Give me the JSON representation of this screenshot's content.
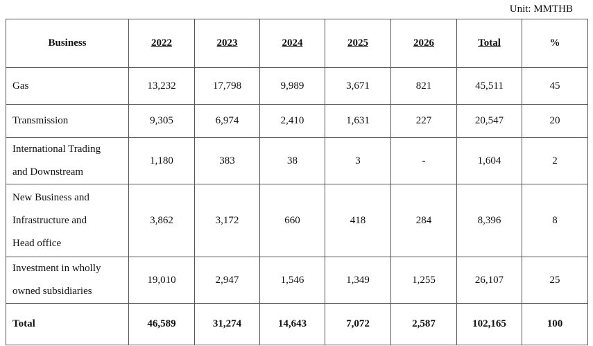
{
  "unit": "Unit: MMTHB",
  "table": {
    "header": [
      "Business",
      "2022",
      "2023",
      "2024",
      "2025",
      "2026",
      "Total",
      "%"
    ],
    "rows": [
      {
        "label": [
          "Gas"
        ],
        "values": [
          "13,232",
          "17,798",
          "9,989",
          "3,671",
          "821",
          "45,511",
          "45"
        ]
      },
      {
        "label": [
          "Transmission"
        ],
        "values": [
          "9,305",
          "6,974",
          "2,410",
          "1,631",
          "227",
          "20,547",
          "20"
        ]
      },
      {
        "label": [
          "International Trading",
          "and Downstream"
        ],
        "values": [
          "1,180",
          "383",
          "38",
          "3",
          "-",
          "1,604",
          "2"
        ]
      },
      {
        "label": [
          "New Business and",
          "Infrastructure and",
          "Head office"
        ],
        "values": [
          "3,862",
          "3,172",
          "660",
          "418",
          "284",
          "8,396",
          "8"
        ]
      },
      {
        "label": [
          "Investment in wholly",
          "owned subsidiaries"
        ],
        "values": [
          "19,010",
          "2,947",
          "1,546",
          "1,349",
          "1,255",
          "26,107",
          "25"
        ]
      }
    ],
    "total": {
      "label": "Total",
      "values": [
        "46,589",
        "31,274",
        "14,643",
        "7,072",
        "2,587",
        "102,165",
        "100"
      ]
    }
  }
}
